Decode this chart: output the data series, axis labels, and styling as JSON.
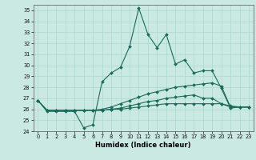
{
  "xlabel": "Humidex (Indice chaleur)",
  "bg_color": "#cbe9e3",
  "grid_color": "#a8d8cf",
  "line_color": "#1a6b5a",
  "xlim": [
    -0.5,
    23.5
  ],
  "ylim": [
    24,
    35.5
  ],
  "yticks": [
    24,
    25,
    26,
    27,
    28,
    29,
    30,
    31,
    32,
    33,
    34,
    35
  ],
  "xticks": [
    0,
    1,
    2,
    3,
    4,
    5,
    6,
    7,
    8,
    9,
    10,
    11,
    12,
    13,
    14,
    15,
    16,
    17,
    18,
    19,
    20,
    21,
    22,
    23
  ],
  "lines": [
    [
      26.8,
      25.8,
      25.8,
      25.8,
      25.8,
      24.3,
      24.6,
      28.5,
      29.3,
      29.8,
      31.7,
      35.2,
      32.8,
      31.6,
      32.8,
      30.1,
      30.5,
      29.3,
      29.5,
      29.5,
      27.9,
      26.1,
      26.2,
      26.2
    ],
    [
      26.8,
      25.9,
      25.9,
      25.9,
      25.9,
      25.9,
      25.9,
      26.0,
      26.2,
      26.5,
      26.8,
      27.1,
      27.4,
      27.6,
      27.8,
      28.0,
      28.1,
      28.2,
      28.3,
      28.4,
      28.1,
      26.2,
      26.2,
      26.2
    ],
    [
      26.8,
      25.9,
      25.9,
      25.9,
      25.9,
      25.9,
      25.9,
      25.9,
      26.0,
      26.1,
      26.3,
      26.5,
      26.7,
      26.8,
      27.0,
      27.1,
      27.2,
      27.3,
      27.0,
      27.0,
      26.5,
      26.2,
      26.2,
      26.2
    ],
    [
      26.8,
      25.9,
      25.9,
      25.9,
      25.9,
      25.9,
      25.9,
      25.9,
      26.0,
      26.0,
      26.1,
      26.2,
      26.3,
      26.4,
      26.5,
      26.5,
      26.5,
      26.5,
      26.5,
      26.5,
      26.5,
      26.3,
      26.2,
      26.2
    ]
  ]
}
